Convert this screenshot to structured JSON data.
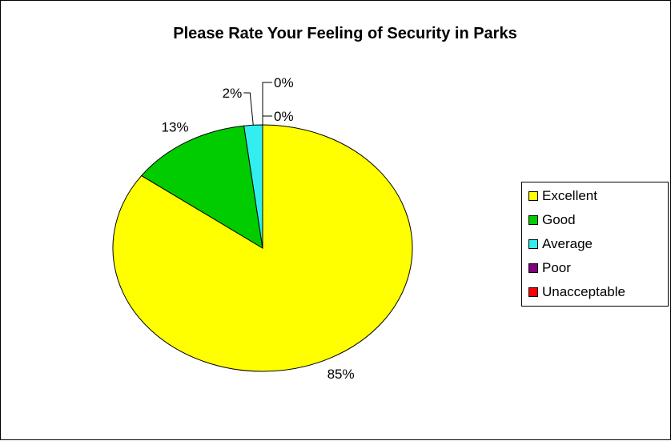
{
  "chart_data": {
    "type": "pie",
    "title": "Please Rate Your Feeling of Security in Parks",
    "categories": [
      "Excellent",
      "Good",
      "Average",
      "Poor",
      "Unacceptable"
    ],
    "values": [
      85,
      13,
      2,
      0,
      0
    ],
    "labels": [
      "85%",
      "13%",
      "2%",
      "0%",
      "0%"
    ],
    "colors": [
      "#FFFF00",
      "#00CC00",
      "#33EEEE",
      "#800080",
      "#FF0000"
    ],
    "legend_position": "right"
  }
}
